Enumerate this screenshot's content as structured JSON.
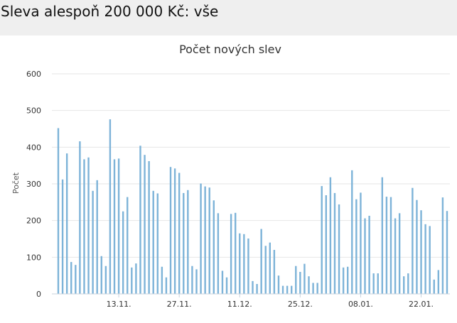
{
  "page": {
    "heading": "Sleva alespoň 200 000 Kč: vše"
  },
  "colors": {
    "bar": "#7db3d8",
    "grid": "#e6e6e6",
    "axis": "#c9d3de",
    "text": "#333333"
  },
  "chart_data": {
    "type": "bar",
    "title": "Počet nových slev",
    "xlabel": "",
    "ylabel": "Počet",
    "ylim": [
      0,
      600
    ],
    "yticks": [
      0,
      100,
      200,
      300,
      400,
      500,
      600
    ],
    "grid": true,
    "legend": "none",
    "x_start": "2023-10-30",
    "x_labels": [
      {
        "label": "13.11.",
        "index": 14
      },
      {
        "label": "27.11.",
        "index": 28
      },
      {
        "label": "11.12.",
        "index": 42
      },
      {
        "label": "25.12.",
        "index": 56
      },
      {
        "label": "08.01.",
        "index": 70
      },
      {
        "label": "22.01.",
        "index": 84
      }
    ],
    "values": [
      452,
      312,
      383,
      87,
      79,
      416,
      367,
      372,
      281,
      310,
      103,
      76,
      476,
      367,
      369,
      225,
      264,
      72,
      83,
      404,
      379,
      362,
      281,
      274,
      74,
      45,
      346,
      342,
      330,
      275,
      283,
      76,
      67,
      301,
      293,
      290,
      255,
      220,
      63,
      45,
      218,
      221,
      165,
      163,
      151,
      35,
      27,
      177,
      131,
      140,
      120,
      50,
      22,
      22,
      22,
      76,
      60,
      82,
      48,
      30,
      30,
      294,
      269,
      318,
      275,
      244,
      72,
      74,
      337,
      258,
      276,
      206,
      213,
      56,
      56,
      318,
      265,
      264,
      206,
      220,
      48,
      56,
      289,
      256,
      228,
      190,
      185,
      39,
      65,
      263,
      226
    ]
  }
}
